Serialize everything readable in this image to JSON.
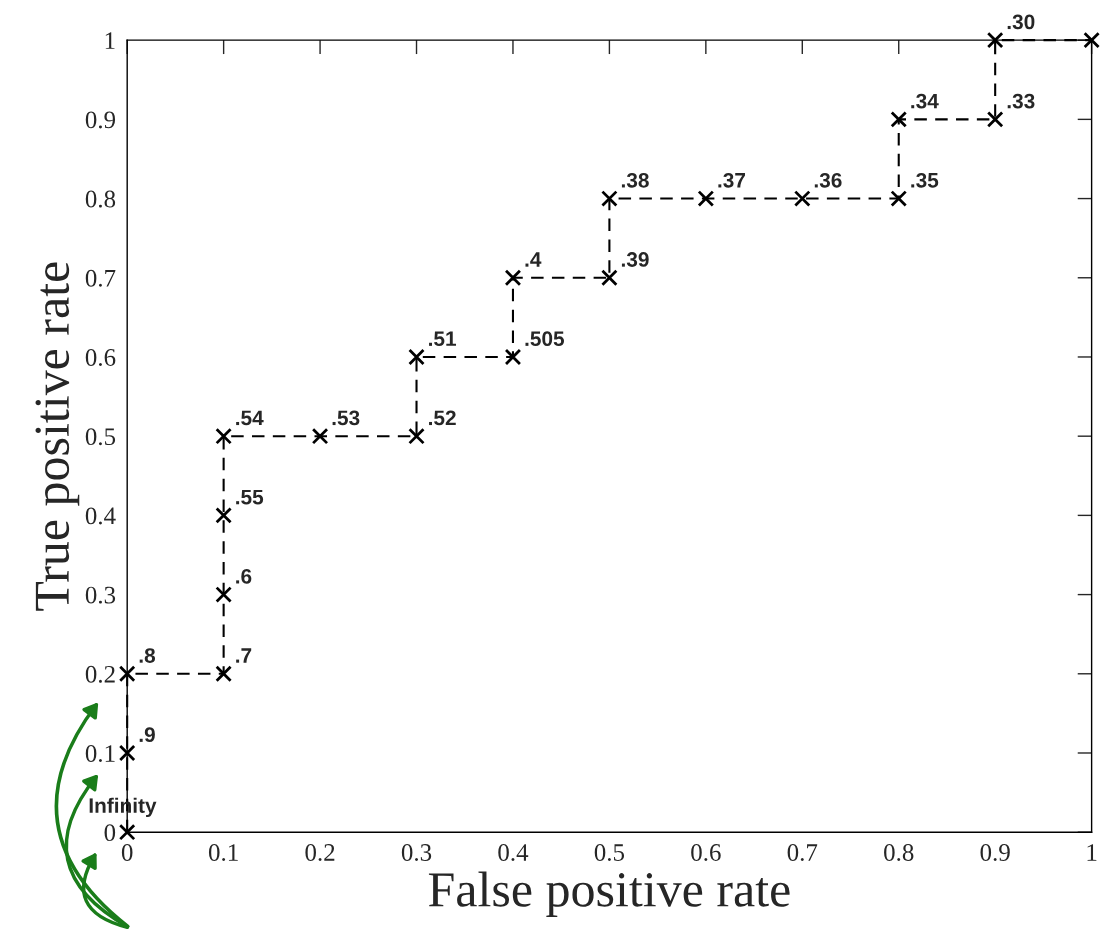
{
  "chart_data": {
    "type": "line",
    "xlabel": "False positive rate",
    "ylabel": "True positive rate",
    "series": [
      {
        "color": "#000000",
        "x": [
          0,
          0,
          0,
          0.1,
          0.1,
          0.1,
          0.1,
          0.2,
          0.3,
          0.3,
          0.4,
          0.4,
          0.5,
          0.5,
          0.6,
          0.7,
          0.8,
          0.8,
          0.9,
          0.9,
          1.0
        ],
        "values": [
          0,
          0.1,
          0.2,
          0.2,
          0.3,
          0.4,
          0.5,
          0.5,
          0.5,
          0.6,
          0.6,
          0.7,
          0.7,
          0.8,
          0.8,
          0.8,
          0.8,
          0.9,
          0.9,
          1.0,
          1.0
        ]
      }
    ],
    "marker": "cross",
    "line_style": "dashed",
    "grid": false,
    "legend": false,
    "xlim": [
      0,
      1
    ],
    "ylim": [
      0,
      1
    ],
    "xticks": [
      0,
      0.1,
      0.2,
      0.3,
      0.4,
      0.5,
      0.6,
      0.7,
      0.8,
      0.9,
      1
    ],
    "yticks": [
      0,
      0.1,
      0.2,
      0.3,
      0.4,
      0.5,
      0.6,
      0.7,
      0.8,
      0.9,
      1
    ],
    "annotations": [
      {
        "text": "Infinity",
        "x": 0,
        "y": 0
      },
      {
        "text": ".9",
        "x": 0,
        "y": 0.1
      },
      {
        "text": ".8",
        "x": 0,
        "y": 0.2
      },
      {
        "text": ".7",
        "x": 0.1,
        "y": 0.2
      },
      {
        "text": ".6",
        "x": 0.1,
        "y": 0.3
      },
      {
        "text": ".55",
        "x": 0.1,
        "y": 0.4
      },
      {
        "text": ".54",
        "x": 0.1,
        "y": 0.5
      },
      {
        "text": ".53",
        "x": 0.2,
        "y": 0.5
      },
      {
        "text": ".52",
        "x": 0.3,
        "y": 0.5
      },
      {
        "text": ".51",
        "x": 0.3,
        "y": 0.6
      },
      {
        "text": ".505",
        "x": 0.4,
        "y": 0.6
      },
      {
        "text": ".4",
        "x": 0.4,
        "y": 0.7
      },
      {
        "text": ".39",
        "x": 0.5,
        "y": 0.7
      },
      {
        "text": ".38",
        "x": 0.5,
        "y": 0.8
      },
      {
        "text": ".37",
        "x": 0.6,
        "y": 0.8
      },
      {
        "text": ".36",
        "x": 0.7,
        "y": 0.8
      },
      {
        "text": ".35",
        "x": 0.8,
        "y": 0.8
      },
      {
        "text": ".34",
        "x": 0.8,
        "y": 0.9
      },
      {
        "text": ".33",
        "x": 0.9,
        "y": 0.9
      },
      {
        "text": ".30",
        "x": 0.9,
        "y": 1.0
      }
    ]
  }
}
